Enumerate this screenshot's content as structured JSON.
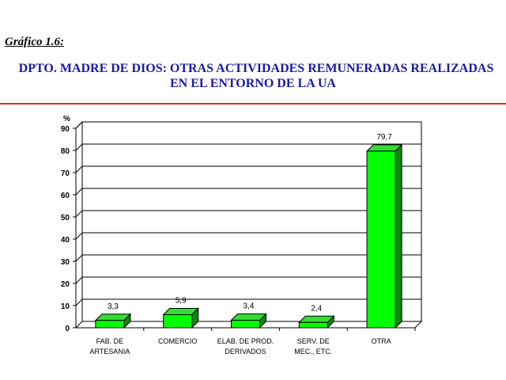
{
  "figure_label": "Gráfico 1.6:",
  "title_line1": "DPTO. MADRE DE DIOS: OTRAS ACTIVIDADES REMUNERADAS REALIZADAS",
  "title_line2": "EN EL ENTORNO DE LA UA",
  "colors": {
    "title": "#1a1aa6",
    "rule": "#e03030",
    "bar_front": "#00ff00",
    "bar_top": "#33dd33",
    "bar_side": "#118811"
  },
  "chart_data": {
    "type": "bar",
    "title": "",
    "xlabel": "",
    "ylabel": "%",
    "ylim": [
      0,
      90
    ],
    "yticks": [
      0,
      10,
      20,
      30,
      40,
      50,
      60,
      70,
      80,
      90
    ],
    "grid": true,
    "categories": [
      [
        "FAB. DE",
        "ARTESANIA"
      ],
      [
        "COMERCIO"
      ],
      [
        "ELAB. DE PROD.",
        "DERIVADOS"
      ],
      [
        "SERV. DE",
        "MEC., ETC."
      ],
      [
        "OTRA"
      ]
    ],
    "values": [
      3.3,
      5.9,
      3.4,
      2.4,
      79.7
    ],
    "value_labels": [
      "3,3",
      "5,9",
      "3,4",
      "2,4",
      "79,7"
    ]
  }
}
